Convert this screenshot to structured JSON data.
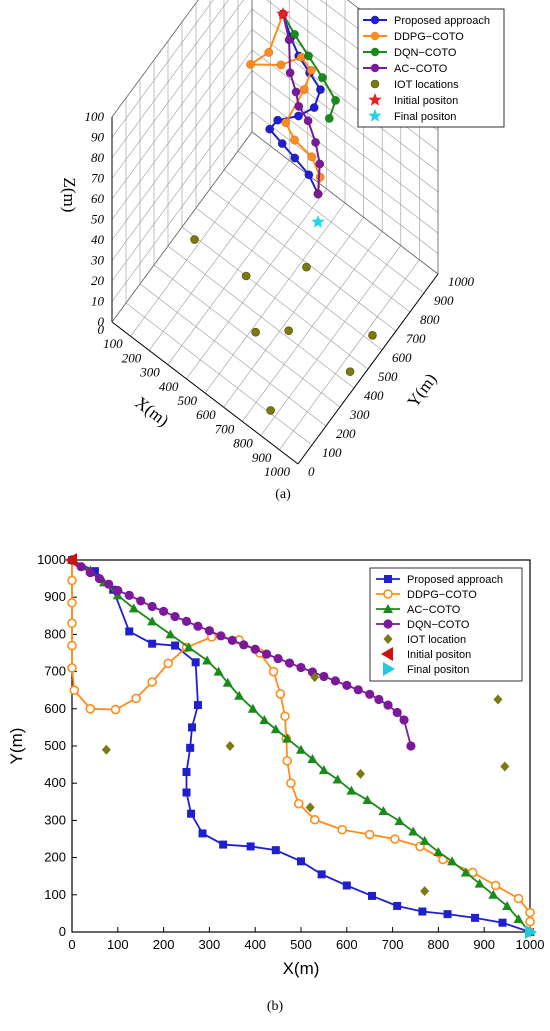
{
  "chart_data": [
    {
      "type": "scatter",
      "projection": "3d",
      "panel_label": "(a)",
      "xlabel": "X(m)",
      "ylabel": "Y(m)",
      "zlabel": "Z(m)",
      "x_ticks": [
        "0",
        "100",
        "200",
        "300",
        "400",
        "500",
        "600",
        "700",
        "800",
        "900",
        "1000"
      ],
      "y_ticks": [
        "0",
        "100",
        "200",
        "300",
        "400",
        "500",
        "600",
        "700",
        "800",
        "900",
        "1000"
      ],
      "z_ticks": [
        "0",
        "10",
        "20",
        "30",
        "40",
        "50",
        "60",
        "70",
        "80",
        "90",
        "100"
      ],
      "xlim": [
        0,
        1000
      ],
      "ylim": [
        0,
        1000
      ],
      "zlim": [
        0,
        100
      ],
      "legend_position": "top-right",
      "series": [
        {
          "name": "Proposed approach",
          "color": "#1f1fcf",
          "marker": "circle-line",
          "points": [
            [
              0,
              1000,
              100
            ],
            [
              150,
              880,
              100
            ],
            [
              280,
              790,
              100
            ],
            [
              420,
              720,
              100
            ],
            [
              560,
              650,
              100
            ],
            [
              600,
              520,
              100
            ],
            [
              540,
              420,
              100
            ],
            [
              430,
              330,
              100
            ],
            [
              420,
              250,
              100
            ],
            [
              560,
              200,
              100
            ],
            [
              700,
              150,
              100
            ],
            [
              860,
              90,
              100
            ],
            [
              1000,
              0,
              100
            ]
          ]
        },
        {
          "name": "DDPG−COTO",
          "color": "#ff8c1a",
          "marker": "circle-line",
          "points": [
            [
              0,
              1000,
              100
            ],
            [
              80,
              720,
              100
            ],
            [
              20,
              590,
              100
            ],
            [
              210,
              680,
              100
            ],
            [
              300,
              790,
              100
            ],
            [
              420,
              740,
              100
            ],
            [
              460,
              600,
              100
            ],
            [
              490,
              340,
              100
            ],
            [
              620,
              260,
              100
            ],
            [
              800,
              210,
              100
            ],
            [
              940,
              110,
              100
            ],
            [
              1000,
              0,
              100
            ]
          ]
        },
        {
          "name": "DQN−COTO",
          "color": "#1a8a1a",
          "marker": "circle-line",
          "points": [
            [
              0,
              1000,
              100
            ],
            [
              160,
              910,
              100
            ],
            [
              340,
              820,
              100
            ],
            [
              520,
              730,
              100
            ],
            [
              700,
              630,
              100
            ],
            [
              740,
              500,
              100
            ]
          ]
        },
        {
          "name": "AC−COTO",
          "color": "#7a1a9a",
          "marker": "circle-line",
          "points": [
            [
              0,
              1000,
              100
            ],
            [
              150,
              860,
              100
            ],
            [
              300,
              660,
              100
            ],
            [
              420,
              560,
              100
            ],
            [
              500,
              480,
              100
            ],
            [
              620,
              420,
              100
            ],
            [
              760,
              310,
              100
            ],
            [
              880,
              190,
              100
            ],
            [
              1000,
              0,
              100
            ]
          ]
        },
        {
          "name": "IOT locations",
          "color": "#7a7a10",
          "marker": "ball",
          "points": [
            [
              75,
              490,
              0
            ],
            [
              345,
              500,
              0
            ],
            [
              530,
              685,
              0
            ],
            [
              630,
              425,
              0
            ],
            [
              520,
              335,
              0
            ],
            [
              770,
              110,
              0
            ],
            [
              930,
              625,
              0
            ],
            [
              945,
              445,
              0
            ]
          ]
        },
        {
          "name": "Initial positon",
          "color": "#ee1c1c",
          "marker": "star",
          "points": [
            [
              0,
              1000,
              100
            ]
          ]
        },
        {
          "name": "Final positon",
          "color": "#22d4e8",
          "marker": "star",
          "points": [
            [
              1000,
              0,
              100
            ]
          ]
        }
      ]
    },
    {
      "type": "line",
      "panel_label": "(b)",
      "xlabel": "X(m)",
      "ylabel": "Y(m)",
      "xlim": [
        0,
        1000
      ],
      "ylim": [
        0,
        1000
      ],
      "x_ticks": [
        "0",
        "100",
        "200",
        "300",
        "400",
        "500",
        "600",
        "700",
        "800",
        "900",
        "1000"
      ],
      "y_ticks": [
        "0",
        "100",
        "200",
        "300",
        "400",
        "500",
        "600",
        "700",
        "800",
        "900",
        "1000"
      ],
      "legend_position": "top-right",
      "series": [
        {
          "name": "Proposed approach",
          "color": "#1f1fcf",
          "marker": "square",
          "points": [
            [
              0,
              1000
            ],
            [
              50,
              970
            ],
            [
              90,
              920
            ],
            [
              125,
              808
            ],
            [
              175,
              775
            ],
            [
              225,
              770
            ],
            [
              270,
              725
            ],
            [
              275,
              610
            ],
            [
              262,
              550
            ],
            [
              258,
              495
            ],
            [
              250,
              430
            ],
            [
              250,
              375
            ],
            [
              260,
              318
            ],
            [
              285,
              265
            ],
            [
              330,
              235
            ],
            [
              390,
              230
            ],
            [
              445,
              220
            ],
            [
              500,
              190
            ],
            [
              545,
              155
            ],
            [
              600,
              125
            ],
            [
              655,
              97
            ],
            [
              710,
              70
            ],
            [
              765,
              55
            ],
            [
              820,
              48
            ],
            [
              880,
              38
            ],
            [
              940,
              25
            ],
            [
              1000,
              0
            ]
          ]
        },
        {
          "name": "DDPG−COTO",
          "color": "#ff8c1a",
          "marker": "circle-open",
          "points": [
            [
              0,
              1000
            ],
            [
              0,
              945
            ],
            [
              0,
              885
            ],
            [
              0,
              830
            ],
            [
              0,
              770
            ],
            [
              0,
              710
            ],
            [
              5,
              650
            ],
            [
              40,
              600
            ],
            [
              95,
              598
            ],
            [
              140,
              628
            ],
            [
              175,
              672
            ],
            [
              210,
              722
            ],
            [
              250,
              765
            ],
            [
              305,
              793
            ],
            [
              365,
              785
            ],
            [
              410,
              750
            ],
            [
              440,
              700
            ],
            [
              455,
              640
            ],
            [
              465,
              580
            ],
            [
              468,
              520
            ],
            [
              470,
              460
            ],
            [
              478,
              400
            ],
            [
              495,
              345
            ],
            [
              530,
              302
            ],
            [
              590,
              275
            ],
            [
              650,
              262
            ],
            [
              705,
              250
            ],
            [
              760,
              230
            ],
            [
              810,
              195
            ],
            [
              875,
              160
            ],
            [
              925,
              125
            ],
            [
              975,
              90
            ],
            [
              1000,
              52
            ],
            [
              1000,
              28
            ],
            [
              1000,
              0
            ]
          ]
        },
        {
          "name": "AC−COTO",
          "color": "#1a8a1a",
          "marker": "triangle",
          "points": [
            [
              0,
              1000
            ],
            [
              40,
              972
            ],
            [
              70,
              940
            ],
            [
              100,
              905
            ],
            [
              135,
              870
            ],
            [
              175,
              835
            ],
            [
              215,
              800
            ],
            [
              255,
              765
            ],
            [
              295,
              730
            ],
            [
              320,
              700
            ],
            [
              340,
              670
            ],
            [
              365,
              635
            ],
            [
              395,
              600
            ],
            [
              420,
              570
            ],
            [
              445,
              545
            ],
            [
              470,
              520
            ],
            [
              500,
              490
            ],
            [
              525,
              465
            ],
            [
              550,
              435
            ],
            [
              580,
              410
            ],
            [
              610,
              380
            ],
            [
              645,
              355
            ],
            [
              680,
              325
            ],
            [
              715,
              298
            ],
            [
              745,
              270
            ],
            [
              770,
              245
            ],
            [
              800,
              215
            ],
            [
              830,
              190
            ],
            [
              860,
              160
            ],
            [
              890,
              130
            ],
            [
              920,
              100
            ],
            [
              950,
              70
            ],
            [
              975,
              35
            ],
            [
              1000,
              0
            ]
          ]
        },
        {
          "name": "DQN−COTO",
          "color": "#7a1a9a",
          "marker": "circle",
          "points": [
            [
              0,
              1000
            ],
            [
              20,
              982
            ],
            [
              40,
              966
            ],
            [
              60,
              950
            ],
            [
              80,
              935
            ],
            [
              100,
              918
            ],
            [
              125,
              905
            ],
            [
              150,
              890
            ],
            [
              175,
              875
            ],
            [
              200,
              862
            ],
            [
              225,
              848
            ],
            [
              250,
              835
            ],
            [
              275,
              822
            ],
            [
              300,
              810
            ],
            [
              325,
              796
            ],
            [
              350,
              784
            ],
            [
              375,
              772
            ],
            [
              400,
              760
            ],
            [
              425,
              747
            ],
            [
              450,
              735
            ],
            [
              475,
              723
            ],
            [
              500,
              711
            ],
            [
              525,
              699
            ],
            [
              550,
              687
            ],
            [
              575,
              675
            ],
            [
              600,
              663
            ],
            [
              625,
              651
            ],
            [
              650,
              639
            ],
            [
              670,
              625
            ],
            [
              690,
              610
            ],
            [
              710,
              590
            ],
            [
              725,
              570
            ],
            [
              740,
              500
            ]
          ]
        },
        {
          "name": "IOT location",
          "color": "#7a7a10",
          "marker": "diamond",
          "points": [
            [
              75,
              490
            ],
            [
              345,
              500
            ],
            [
              530,
              685
            ],
            [
              630,
              425
            ],
            [
              520,
              335
            ],
            [
              770,
              110
            ],
            [
              930,
              625
            ],
            [
              945,
              445
            ]
          ]
        },
        {
          "name": "Initial positon",
          "color": "#cc1111",
          "marker": "triangle-left",
          "points": [
            [
              0,
              1000
            ]
          ]
        },
        {
          "name": "Final positon",
          "color": "#22c8e0",
          "marker": "triangle-right",
          "points": [
            [
              1000,
              0
            ]
          ]
        }
      ]
    }
  ]
}
